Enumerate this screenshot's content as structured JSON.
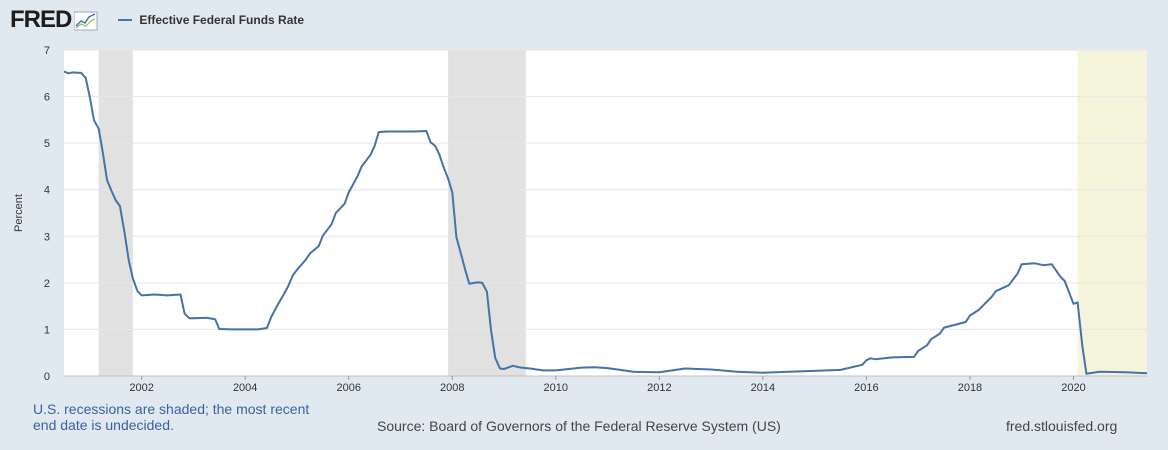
{
  "header": {
    "logo_text": "FRED",
    "legend_label": "Effective Federal Funds Rate"
  },
  "footer": {
    "recession_note": "U.S. recessions are shaded; the most recent end date is undecided.",
    "source": "Source: Board of Governors of the Federal Reserve System (US)",
    "site": "fred.stlouisfed.org"
  },
  "colors": {
    "line": "#4572a7",
    "recession": "#e1e1e1",
    "recession_undecided": "#f4f4db",
    "background": "#e1e9f0",
    "plot": "#ffffff"
  },
  "chart_data": {
    "type": "line",
    "title": "",
    "xlabel": "",
    "ylabel": "Percent",
    "xlim": [
      2000.5,
      2021.42
    ],
    "ylim": [
      0,
      7
    ],
    "x_ticks": [
      2002,
      2004,
      2006,
      2008,
      2010,
      2012,
      2014,
      2016,
      2018,
      2020
    ],
    "y_ticks": [
      0,
      1,
      2,
      3,
      4,
      5,
      6,
      7
    ],
    "grid": "horizontal",
    "legend": "top-left",
    "recessions": [
      {
        "start": 2001.17,
        "end": 2001.83
      },
      {
        "start": 2007.92,
        "end": 2009.42
      },
      {
        "start": 2020.08,
        "end": 2021.42,
        "undecided": true
      }
    ],
    "series": [
      {
        "name": "Effective Federal Funds Rate",
        "x": [
          2000.5,
          2000.58,
          2000.67,
          2000.75,
          2000.83,
          2000.92,
          2001.0,
          2001.08,
          2001.17,
          2001.25,
          2001.33,
          2001.42,
          2001.5,
          2001.58,
          2001.67,
          2001.75,
          2001.83,
          2001.92,
          2002.0,
          2002.25,
          2002.5,
          2002.75,
          2002.83,
          2002.92,
          2003.0,
          2003.25,
          2003.42,
          2003.5,
          2003.75,
          2004.0,
          2004.25,
          2004.42,
          2004.5,
          2004.58,
          2004.67,
          2004.75,
          2004.83,
          2004.92,
          2005.0,
          2005.17,
          2005.25,
          2005.42,
          2005.5,
          2005.67,
          2005.75,
          2005.92,
          2006.0,
          2006.17,
          2006.25,
          2006.42,
          2006.5,
          2006.58,
          2006.75,
          2007.0,
          2007.25,
          2007.5,
          2007.58,
          2007.67,
          2007.75,
          2007.83,
          2007.92,
          2008.0,
          2008.08,
          2008.17,
          2008.25,
          2008.33,
          2008.42,
          2008.5,
          2008.58,
          2008.67,
          2008.75,
          2008.83,
          2008.92,
          2009.0,
          2009.17,
          2009.33,
          2009.5,
          2009.75,
          2010.0,
          2010.5,
          2010.75,
          2011.0,
          2011.5,
          2012.0,
          2012.5,
          2013.0,
          2013.5,
          2014.0,
          2014.5,
          2015.0,
          2015.5,
          2015.92,
          2016.0,
          2016.08,
          2016.17,
          2016.5,
          2016.92,
          2017.0,
          2017.17,
          2017.25,
          2017.42,
          2017.5,
          2017.92,
          2018.0,
          2018.17,
          2018.25,
          2018.42,
          2018.5,
          2018.75,
          2018.92,
          2019.0,
          2019.25,
          2019.42,
          2019.58,
          2019.75,
          2019.83,
          2020.0,
          2020.08,
          2020.17,
          2020.25,
          2020.5,
          2021.0,
          2021.42
        ],
        "values": [
          6.54,
          6.5,
          6.52,
          6.51,
          6.51,
          6.4,
          5.98,
          5.49,
          5.31,
          4.8,
          4.21,
          3.97,
          3.77,
          3.65,
          3.07,
          2.49,
          2.09,
          1.82,
          1.73,
          1.75,
          1.73,
          1.75,
          1.34,
          1.24,
          1.24,
          1.25,
          1.22,
          1.01,
          1.0,
          1.0,
          1.0,
          1.03,
          1.26,
          1.43,
          1.61,
          1.76,
          1.93,
          2.16,
          2.28,
          2.5,
          2.63,
          2.79,
          3.01,
          3.26,
          3.5,
          3.7,
          3.94,
          4.29,
          4.5,
          4.75,
          4.94,
          5.24,
          5.25,
          5.25,
          5.25,
          5.26,
          5.02,
          4.94,
          4.76,
          4.49,
          4.24,
          3.94,
          2.98,
          2.61,
          2.28,
          1.98,
          2.0,
          2.01,
          2.0,
          1.81,
          0.97,
          0.39,
          0.16,
          0.15,
          0.22,
          0.18,
          0.16,
          0.12,
          0.12,
          0.18,
          0.19,
          0.17,
          0.09,
          0.08,
          0.16,
          0.14,
          0.09,
          0.07,
          0.09,
          0.11,
          0.13,
          0.24,
          0.34,
          0.38,
          0.36,
          0.4,
          0.41,
          0.54,
          0.66,
          0.79,
          0.91,
          1.04,
          1.16,
          1.3,
          1.42,
          1.51,
          1.7,
          1.82,
          1.95,
          2.2,
          2.4,
          2.42,
          2.38,
          2.4,
          2.13,
          2.04,
          1.55,
          1.58,
          0.65,
          0.05,
          0.09,
          0.08,
          0.06
        ]
      }
    ]
  }
}
